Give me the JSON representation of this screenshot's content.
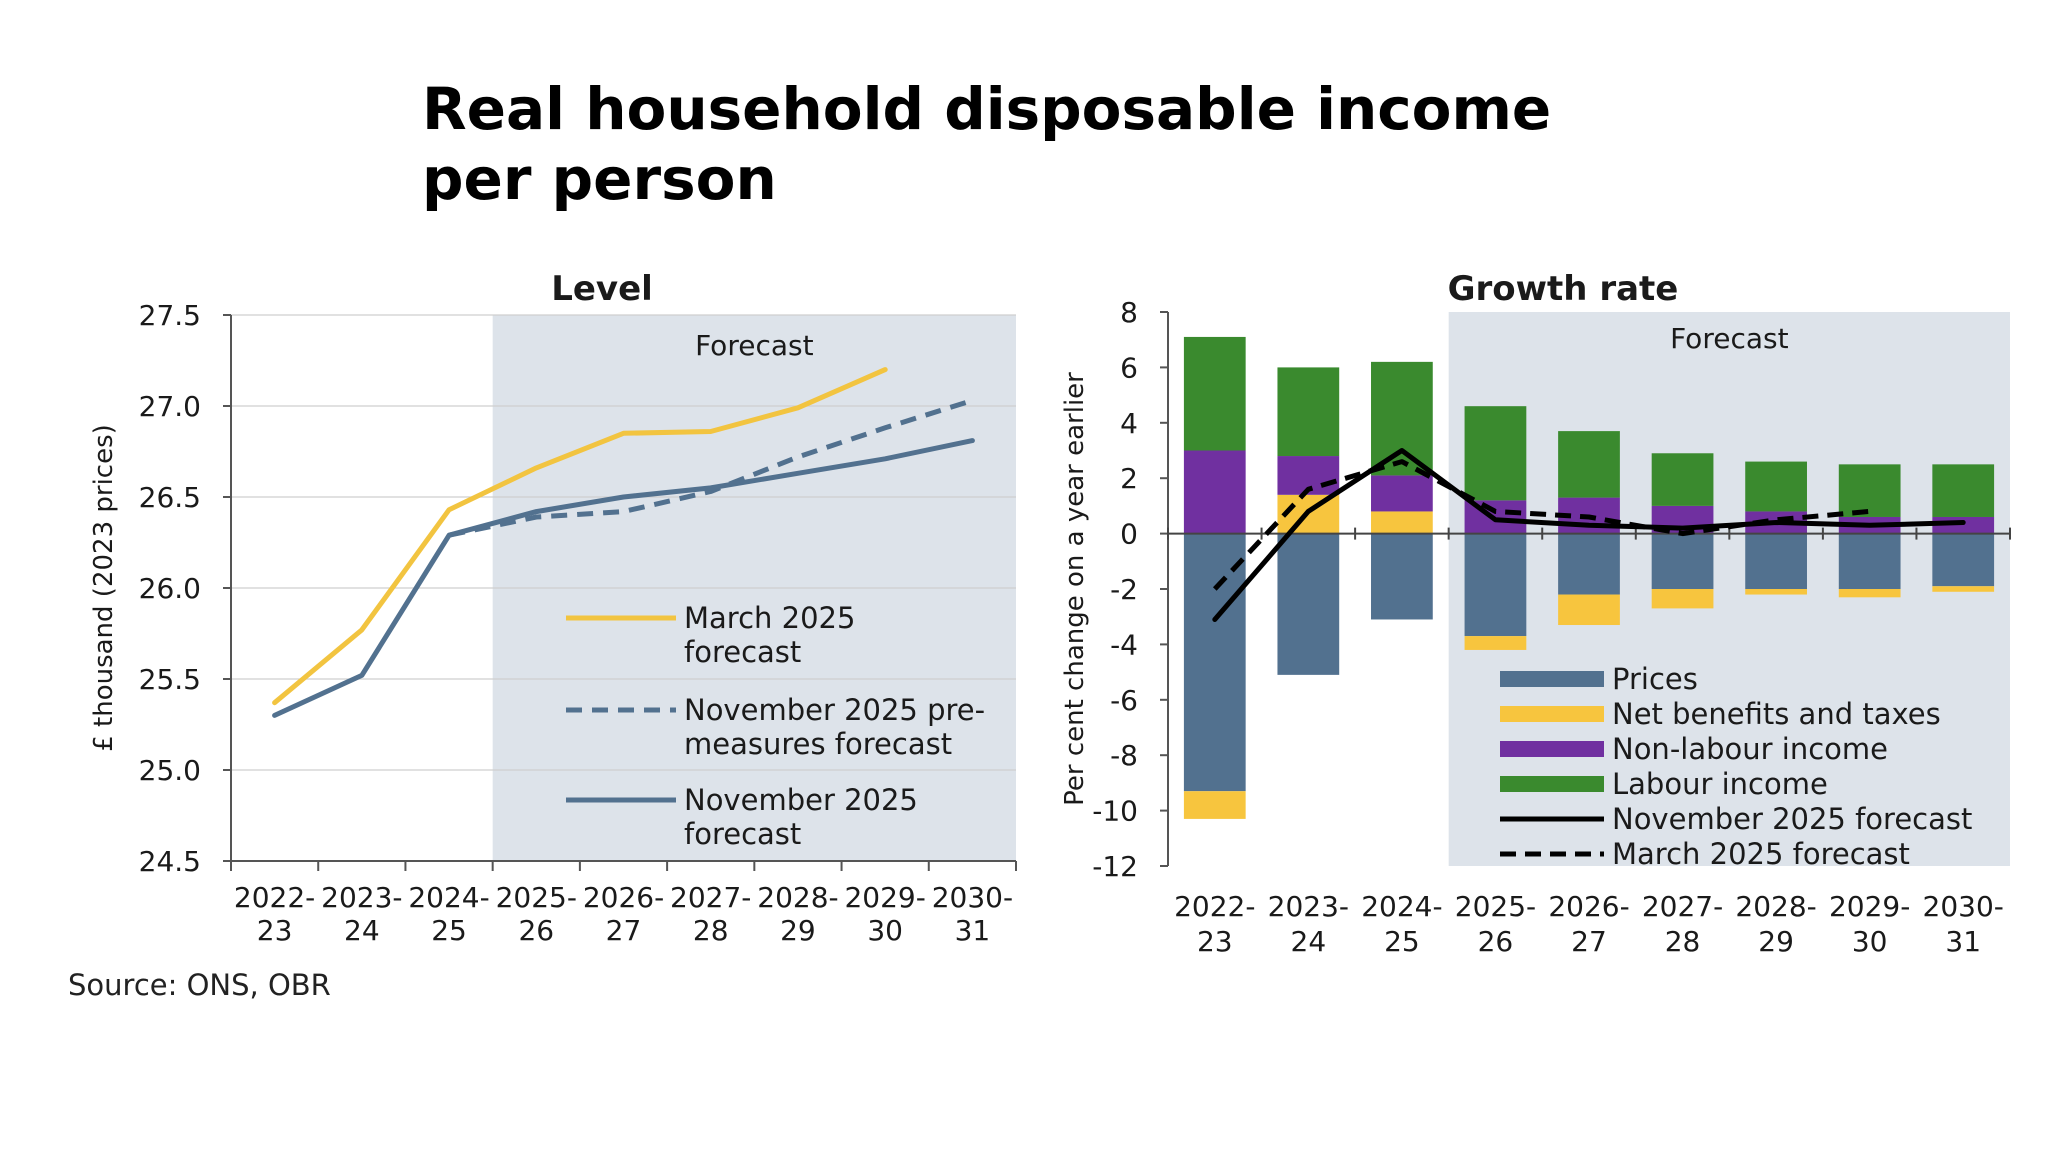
{
  "page_title": "Real household disposable income per person",
  "source": "Source: ONS, OBR",
  "chart_data": [
    {
      "type": "line",
      "title": "Level",
      "ylabel": "£ thousand (2023 prices)",
      "xlabel": "",
      "ylim": [
        24.5,
        27.5
      ],
      "yticks": [
        "24.5",
        "25.0",
        "25.5",
        "26.0",
        "26.5",
        "27.0",
        "27.5"
      ],
      "categories": [
        "2022-23",
        "2023-24",
        "2024-25",
        "2025-26",
        "2026-27",
        "2027-28",
        "2028-29",
        "2029-30",
        "2030-31"
      ],
      "category_lines": [
        [
          "2022-",
          "23"
        ],
        [
          "2023-",
          "24"
        ],
        [
          "2024-",
          "25"
        ],
        [
          "2025-",
          "26"
        ],
        [
          "2026-",
          "27"
        ],
        [
          "2027-",
          "28"
        ],
        [
          "2028-",
          "29"
        ],
        [
          "2029-",
          "30"
        ],
        [
          "2030-",
          "31"
        ]
      ],
      "forecast_label": "Forecast",
      "forecast_start_category": "2025-26",
      "grid": true,
      "legend_position": "bottom-right inside",
      "series": [
        {
          "name": "March 2025 forecast",
          "legend_lines": [
            "March 2025",
            "forecast"
          ],
          "color": "#f2c440",
          "style": "solid",
          "values": [
            25.37,
            25.77,
            26.43,
            26.66,
            26.85,
            26.86,
            26.99,
            27.2,
            null
          ]
        },
        {
          "name": "November 2025 pre-measures forecast",
          "legend_lines": [
            "November 2025 pre-",
            "measures forecast"
          ],
          "color": "#52718f",
          "style": "dashed",
          "values": [
            null,
            null,
            26.29,
            26.39,
            26.42,
            26.53,
            26.72,
            26.88,
            27.03
          ]
        },
        {
          "name": "November 2025 forecast",
          "legend_lines": [
            "November 2025",
            "forecast"
          ],
          "color": "#52718f",
          "style": "solid",
          "values": [
            25.3,
            25.52,
            26.29,
            26.42,
            26.5,
            26.55,
            26.63,
            26.71,
            26.81
          ]
        }
      ]
    },
    {
      "type": "bar",
      "stacked": true,
      "title": "Growth rate",
      "ylabel": "Per cent change on a year earlier",
      "xlabel": "",
      "ylim": [
        -12,
        8
      ],
      "yticks": [
        "-12",
        "-10",
        "-8",
        "-6",
        "-4",
        "-2",
        "0",
        "2",
        "4",
        "6",
        "8"
      ],
      "categories": [
        "2022-23",
        "2023-24",
        "2024-25",
        "2025-26",
        "2026-27",
        "2027-28",
        "2028-29",
        "2029-30",
        "2030-31"
      ],
      "category_lines": [
        [
          "2022-",
          "23"
        ],
        [
          "2023-",
          "24"
        ],
        [
          "2024-",
          "25"
        ],
        [
          "2025-",
          "26"
        ],
        [
          "2026-",
          "27"
        ],
        [
          "2027-",
          "28"
        ],
        [
          "2028-",
          "29"
        ],
        [
          "2029-",
          "30"
        ],
        [
          "2030-",
          "31"
        ]
      ],
      "forecast_label": "Forecast",
      "forecast_start_category": "2025-26",
      "grid": false,
      "legend_position": "bottom-right inside",
      "series": [
        {
          "name": "Prices",
          "color": "#52718f",
          "kind": "bar",
          "values": [
            -9.3,
            -5.1,
            -3.1,
            -3.7,
            -2.2,
            -2.0,
            -2.0,
            -2.0,
            -1.9
          ]
        },
        {
          "name": "Net benefits and taxes",
          "color": "#f7c53e",
          "kind": "bar",
          "values": [
            -1.0,
            1.4,
            0.8,
            -0.5,
            -1.1,
            -0.7,
            -0.2,
            -0.3,
            -0.2
          ]
        },
        {
          "name": "Non-labour income",
          "color": "#7030a0",
          "kind": "bar",
          "values": [
            3.0,
            1.4,
            1.3,
            1.2,
            1.3,
            1.0,
            0.8,
            0.6,
            0.6
          ]
        },
        {
          "name": "Labour income",
          "color": "#3a8a2e",
          "kind": "bar",
          "values": [
            4.1,
            3.2,
            4.1,
            3.4,
            2.4,
            1.9,
            1.8,
            1.9,
            1.9
          ]
        },
        {
          "name": "November 2025 forecast",
          "color": "#000000",
          "kind": "line",
          "style": "solid",
          "values": [
            -3.1,
            0.8,
            3.0,
            0.5,
            0.3,
            0.2,
            0.4,
            0.3,
            0.4
          ]
        },
        {
          "name": "March 2025 forecast",
          "color": "#000000",
          "kind": "line",
          "style": "dashed",
          "values": [
            -2.0,
            1.6,
            2.6,
            0.8,
            0.6,
            0.0,
            0.5,
            0.8,
            null
          ]
        }
      ]
    }
  ]
}
